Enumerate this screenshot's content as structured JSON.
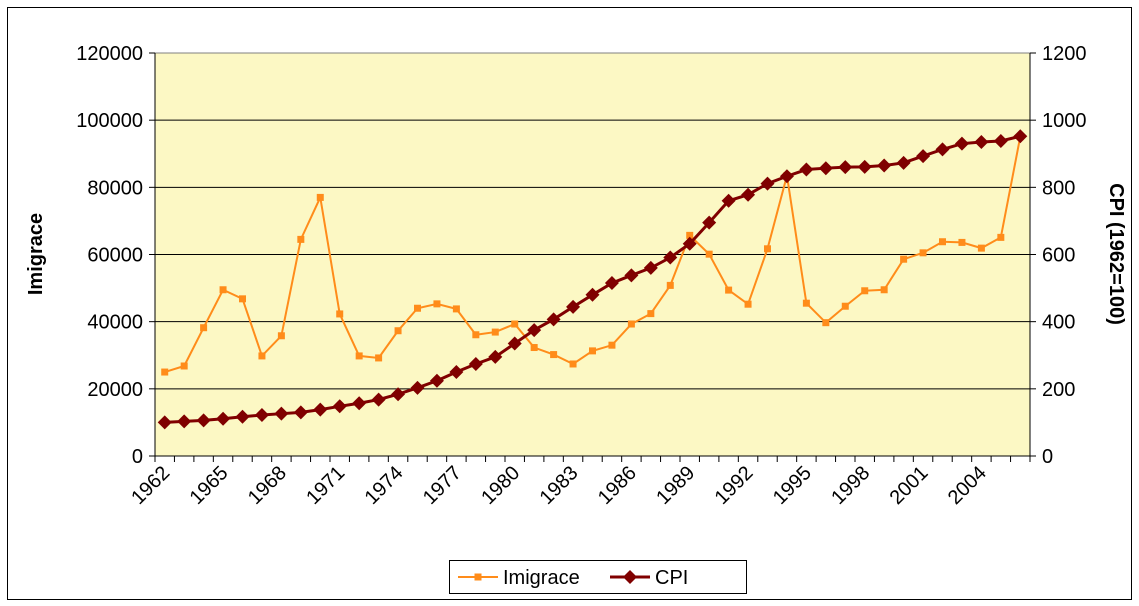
{
  "chart_data": {
    "type": "line",
    "categories": [
      "1962",
      null,
      null,
      "1965",
      null,
      null,
      "1968",
      null,
      null,
      "1971",
      null,
      null,
      "1974",
      null,
      null,
      "1977",
      null,
      null,
      "1980",
      null,
      null,
      "1983",
      null,
      null,
      "1986",
      null,
      null,
      "1989",
      null,
      null,
      "1992",
      null,
      null,
      "1995",
      null,
      null,
      "1998",
      null,
      null,
      "2001",
      null,
      null,
      "2004",
      null,
      null
    ],
    "y_label": "Imigrace",
    "y2_label": "CPI (1962=100)",
    "ylim": [
      0,
      120000
    ],
    "yticks": [
      0,
      20000,
      40000,
      60000,
      80000,
      100000,
      120000
    ],
    "y2lim": [
      0,
      1200
    ],
    "y2ticks": [
      0,
      200,
      400,
      600,
      800,
      1000,
      1200
    ],
    "grid": true,
    "legend": "bottom",
    "series": [
      {
        "name": "Imigrace",
        "color": "#ff8c1a",
        "marker": "square",
        "values": [
          25000,
          26800,
          38200,
          49500,
          46800,
          29800,
          35800,
          64500,
          77000,
          42300,
          29800,
          29200,
          37300,
          44000,
          45300,
          43800,
          36100,
          36900,
          39300,
          32300,
          30200,
          27400,
          31300,
          33000,
          39300,
          42400,
          50800,
          65700,
          60100,
          49400,
          45200,
          61700,
          83500,
          45500,
          39700,
          44600,
          49200,
          49500,
          58600,
          60500,
          63800,
          63600,
          61900,
          65100,
          95100
        ]
      },
      {
        "name": "CPI",
        "color": "#800000",
        "marker": "diamond",
        "axis": "y2",
        "values": [
          100,
          103,
          106,
          111,
          117,
          122,
          126,
          130,
          138,
          148,
          157,
          168,
          184,
          203,
          224,
          250,
          274,
          295,
          335,
          375,
          407,
          444,
          480,
          515,
          538,
          560,
          591,
          632,
          695,
          760,
          778,
          811,
          833,
          853,
          857,
          860,
          861,
          865,
          873,
          893,
          913,
          930,
          935,
          938,
          952
        ]
      }
    ]
  }
}
